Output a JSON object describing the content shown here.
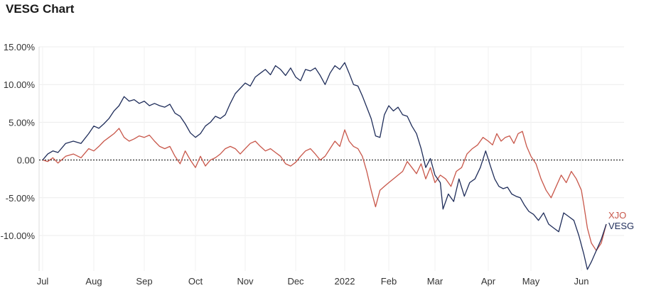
{
  "chart_data": {
    "type": "line",
    "title": "VESG Chart",
    "xlabel": "",
    "ylabel": "",
    "x_ticks": [
      "Jul",
      "Aug",
      "Sep",
      "Oct",
      "Nov",
      "Dec",
      "2022",
      "Feb",
      "Mar",
      "Apr",
      "May",
      "Jun"
    ],
    "y_ticks": [
      "15.00%",
      "10.00%",
      "5.00%",
      "0.00",
      "-5.00%",
      "-10.00%"
    ],
    "ylim": [
      -15,
      15
    ],
    "grid": true,
    "baseline": 0,
    "legend_placement": "right end of lines",
    "series": [
      {
        "name": "VESG",
        "color": "#1f2d5a",
        "points": [
          [
            0,
            0
          ],
          [
            0.1,
            0.8
          ],
          [
            0.2,
            1.2
          ],
          [
            0.3,
            1
          ],
          [
            0.45,
            2.2
          ],
          [
            0.6,
            2.5
          ],
          [
            0.75,
            2.2
          ],
          [
            0.9,
            3.5
          ],
          [
            1,
            4.5
          ],
          [
            1.1,
            4.2
          ],
          [
            1.2,
            4.8
          ],
          [
            1.3,
            5.5
          ],
          [
            1.4,
            6.5
          ],
          [
            1.5,
            7.2
          ],
          [
            1.6,
            8.4
          ],
          [
            1.7,
            7.8
          ],
          [
            1.8,
            8
          ],
          [
            1.9,
            7.5
          ],
          [
            2.0,
            7.8
          ],
          [
            2.1,
            7.2
          ],
          [
            2.2,
            7.5
          ],
          [
            2.3,
            7.2
          ],
          [
            2.4,
            7.0
          ],
          [
            2.5,
            7.4
          ],
          [
            2.6,
            6.2
          ],
          [
            2.7,
            5.8
          ],
          [
            2.8,
            4.8
          ],
          [
            2.9,
            3.6
          ],
          [
            3.0,
            3.0
          ],
          [
            3.1,
            3.5
          ],
          [
            3.2,
            4.5
          ],
          [
            3.3,
            5.0
          ],
          [
            3.4,
            5.8
          ],
          [
            3.5,
            5.5
          ],
          [
            3.6,
            6.0
          ],
          [
            3.7,
            7.5
          ],
          [
            3.8,
            8.8
          ],
          [
            3.9,
            9.5
          ],
          [
            4.0,
            10.2
          ],
          [
            4.1,
            9.8
          ],
          [
            4.2,
            11.0
          ],
          [
            4.3,
            11.5
          ],
          [
            4.4,
            12.0
          ],
          [
            4.5,
            11.3
          ],
          [
            4.6,
            12.5
          ],
          [
            4.7,
            12.0
          ],
          [
            4.8,
            11.2
          ],
          [
            4.9,
            12.2
          ],
          [
            5.0,
            11.0
          ],
          [
            5.1,
            10.5
          ],
          [
            5.2,
            12.0
          ],
          [
            5.3,
            11.8
          ],
          [
            5.4,
            12.2
          ],
          [
            5.5,
            11.2
          ],
          [
            5.6,
            10.0
          ],
          [
            5.7,
            11.5
          ],
          [
            5.8,
            12.5
          ],
          [
            5.9,
            12.0
          ],
          [
            6.0,
            12.9
          ],
          [
            6.1,
            11.5
          ],
          [
            6.2,
            10.0
          ],
          [
            6.3,
            9.8
          ],
          [
            6.4,
            8.5
          ],
          [
            6.5,
            7.0
          ],
          [
            6.6,
            5.5
          ],
          [
            6.7,
            3.2
          ],
          [
            6.8,
            3.0
          ],
          [
            6.9,
            6.0
          ],
          [
            7.0,
            7.2
          ],
          [
            7.1,
            6.5
          ],
          [
            7.2,
            7.0
          ],
          [
            7.3,
            6.0
          ],
          [
            7.4,
            5.8
          ],
          [
            7.5,
            4.5
          ],
          [
            7.6,
            3.5
          ],
          [
            7.7,
            1.5
          ],
          [
            7.8,
            -1.0
          ],
          [
            7.9,
            0.2
          ],
          [
            8.0,
            -2.0
          ],
          [
            8.1,
            -3.0
          ],
          [
            8.15,
            -6.5
          ],
          [
            8.25,
            -4.5
          ],
          [
            8.35,
            -5.5
          ],
          [
            8.45,
            -2.5
          ],
          [
            8.55,
            -4.8
          ],
          [
            8.65,
            -3.0
          ],
          [
            8.75,
            -2.5
          ],
          [
            8.85,
            -1.0
          ],
          [
            8.95,
            1.2
          ],
          [
            9.05,
            -0.8
          ],
          [
            9.15,
            -2.5
          ],
          [
            9.25,
            -3.5
          ],
          [
            9.35,
            -3.8
          ],
          [
            9.45,
            -3.6
          ],
          [
            9.55,
            -4.5
          ],
          [
            9.65,
            -4.8
          ],
          [
            9.75,
            -5.0
          ],
          [
            9.85,
            -6.0
          ],
          [
            9.95,
            -6.8
          ],
          [
            10.05,
            -7.2
          ],
          [
            10.15,
            -8.0
          ],
          [
            10.25,
            -7.0
          ],
          [
            10.35,
            -8.5
          ],
          [
            10.45,
            -9.0
          ],
          [
            10.55,
            -9.5
          ],
          [
            10.65,
            -7.0
          ],
          [
            10.75,
            -7.5
          ],
          [
            10.85,
            -8.0
          ],
          [
            10.95,
            -10.0
          ],
          [
            11.05,
            -12.5
          ],
          [
            11.12,
            -14.5
          ],
          [
            11.2,
            -13.5
          ],
          [
            11.3,
            -12.0
          ],
          [
            11.4,
            -10.5
          ],
          [
            11.5,
            -8.5
          ]
        ]
      },
      {
        "name": "XJO",
        "color": "#c8574a",
        "points": [
          [
            0,
            0
          ],
          [
            0.1,
            -0.2
          ],
          [
            0.2,
            0.3
          ],
          [
            0.3,
            -0.4
          ],
          [
            0.45,
            0.5
          ],
          [
            0.6,
            0.8
          ],
          [
            0.75,
            0.3
          ],
          [
            0.9,
            1.5
          ],
          [
            1,
            1.2
          ],
          [
            1.1,
            1.8
          ],
          [
            1.2,
            2.5
          ],
          [
            1.3,
            3.0
          ],
          [
            1.4,
            3.5
          ],
          [
            1.5,
            4.2
          ],
          [
            1.6,
            3.0
          ],
          [
            1.7,
            2.5
          ],
          [
            1.8,
            2.8
          ],
          [
            1.9,
            3.2
          ],
          [
            2.0,
            3.0
          ],
          [
            2.1,
            3.3
          ],
          [
            2.2,
            2.5
          ],
          [
            2.3,
            1.8
          ],
          [
            2.4,
            1.5
          ],
          [
            2.5,
            1.8
          ],
          [
            2.6,
            0.5
          ],
          [
            2.7,
            -0.5
          ],
          [
            2.8,
            1.2
          ],
          [
            2.9,
            0.0
          ],
          [
            3.0,
            -1.0
          ],
          [
            3.1,
            0.5
          ],
          [
            3.2,
            -0.8
          ],
          [
            3.3,
            0.0
          ],
          [
            3.4,
            0.3
          ],
          [
            3.5,
            0.8
          ],
          [
            3.6,
            1.5
          ],
          [
            3.7,
            1.8
          ],
          [
            3.8,
            1.5
          ],
          [
            3.9,
            0.8
          ],
          [
            4.0,
            1.5
          ],
          [
            4.1,
            2.2
          ],
          [
            4.2,
            2.5
          ],
          [
            4.3,
            1.8
          ],
          [
            4.4,
            1.2
          ],
          [
            4.5,
            1.5
          ],
          [
            4.6,
            1.0
          ],
          [
            4.7,
            0.5
          ],
          [
            4.8,
            -0.5
          ],
          [
            4.9,
            -0.8
          ],
          [
            5.0,
            -0.3
          ],
          [
            5.1,
            0.5
          ],
          [
            5.2,
            1.2
          ],
          [
            5.3,
            1.5
          ],
          [
            5.4,
            0.8
          ],
          [
            5.5,
            0.0
          ],
          [
            5.6,
            0.5
          ],
          [
            5.7,
            1.5
          ],
          [
            5.8,
            2.5
          ],
          [
            5.9,
            1.8
          ],
          [
            6.0,
            4.0
          ],
          [
            6.1,
            2.5
          ],
          [
            6.2,
            1.8
          ],
          [
            6.3,
            1.5
          ],
          [
            6.4,
            0.5
          ],
          [
            6.5,
            -1.5
          ],
          [
            6.6,
            -4.0
          ],
          [
            6.7,
            -6.2
          ],
          [
            6.8,
            -4.0
          ],
          [
            6.9,
            -3.5
          ],
          [
            7.0,
            -3.0
          ],
          [
            7.1,
            -2.5
          ],
          [
            7.2,
            -2.0
          ],
          [
            7.3,
            -1.5
          ],
          [
            7.4,
            -0.2
          ],
          [
            7.5,
            -1.0
          ],
          [
            7.6,
            -1.8
          ],
          [
            7.7,
            -0.5
          ],
          [
            7.8,
            -2.5
          ],
          [
            7.9,
            -1.0
          ],
          [
            8.0,
            -3.0
          ],
          [
            8.1,
            -2.0
          ],
          [
            8.2,
            -2.5
          ],
          [
            8.3,
            -3.5
          ],
          [
            8.4,
            -1.5
          ],
          [
            8.5,
            -1.0
          ],
          [
            8.6,
            0.8
          ],
          [
            8.7,
            1.5
          ],
          [
            8.8,
            2.0
          ],
          [
            8.9,
            3.0
          ],
          [
            9.0,
            2.5
          ],
          [
            9.1,
            2.0
          ],
          [
            9.2,
            3.5
          ],
          [
            9.3,
            2.5
          ],
          [
            9.4,
            3.0
          ],
          [
            9.5,
            3.2
          ],
          [
            9.6,
            2.2
          ],
          [
            9.7,
            3.5
          ],
          [
            9.8,
            3.8
          ],
          [
            9.9,
            1.8
          ],
          [
            10.0,
            0.5
          ],
          [
            10.1,
            -0.5
          ],
          [
            10.2,
            -2.5
          ],
          [
            10.3,
            -4.0
          ],
          [
            10.4,
            -5.0
          ],
          [
            10.5,
            -3.5
          ],
          [
            10.6,
            -2.0
          ],
          [
            10.7,
            -3.0
          ],
          [
            10.8,
            -1.5
          ],
          [
            10.9,
            -2.5
          ],
          [
            11.0,
            -4.0
          ],
          [
            11.05,
            -6.0
          ],
          [
            11.12,
            -9.0
          ],
          [
            11.2,
            -11.0
          ],
          [
            11.3,
            -12.0
          ],
          [
            11.4,
            -11.0
          ],
          [
            11.5,
            -8.5
          ]
        ]
      }
    ]
  }
}
